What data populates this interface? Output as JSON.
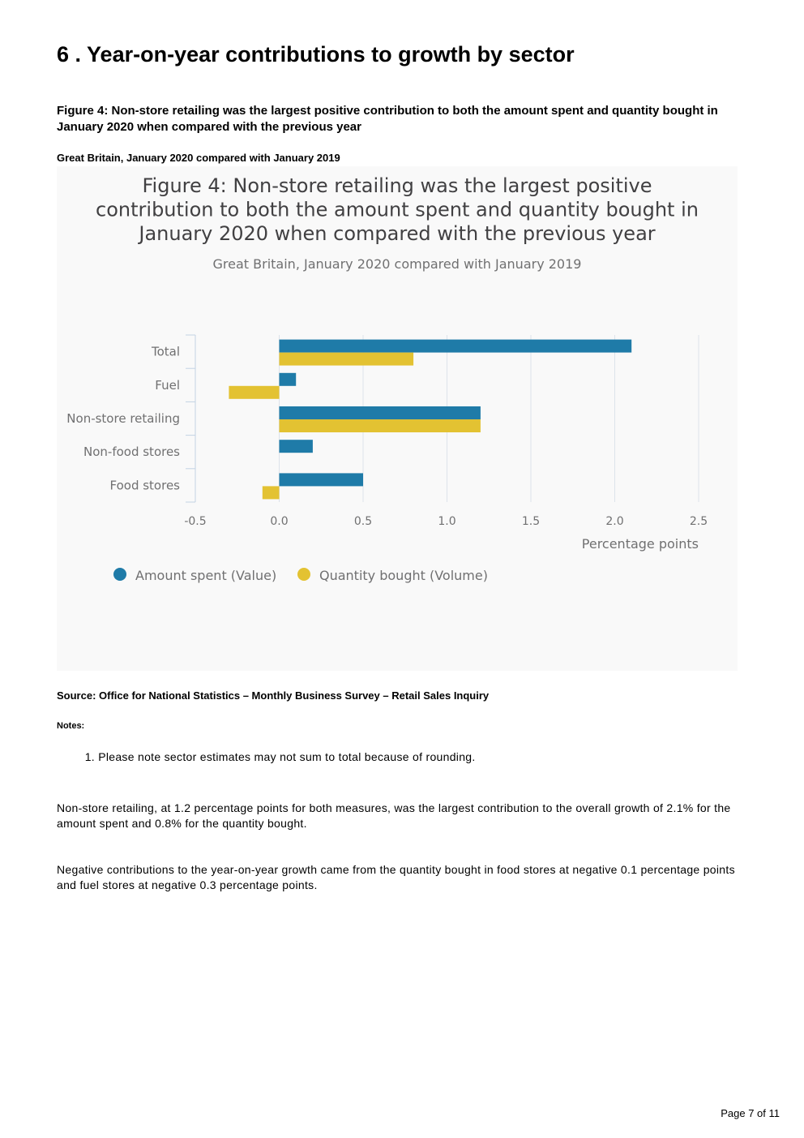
{
  "section_heading": "6 . Year-on-year contributions to growth by sector",
  "figure_caption": "Figure 4: Non-store retailing was the largest positive contribution to both the amount spent and quantity bought in January 2020 when compared with the previous year",
  "figure_subcaption": "Great Britain, January 2020 compared with January 2019",
  "chart_data": {
    "type": "bar",
    "orientation": "horizontal",
    "title": "Figure 4: Non-store retailing was the largest positive contribution to both the amount spent and quantity bought in January 2020 when compared with the previous year",
    "title_lines": [
      "Figure 4: Non-store retailing was the largest positive",
      "contribution to both the amount spent and quantity bought in",
      "January 2020 when compared with the previous year"
    ],
    "subtitle": "Great Britain, January 2020 compared with January 2019",
    "categories": [
      "Total",
      "Fuel",
      "Non-store retailing",
      "Non-food stores",
      "Food stores"
    ],
    "series": [
      {
        "name": "Amount spent (Value)",
        "color": "#1f7ba8",
        "values": [
          2.1,
          0.1,
          1.2,
          0.2,
          0.5
        ]
      },
      {
        "name": "Quantity bought (Volume)",
        "color": "#e3c232",
        "values": [
          0.8,
          -0.3,
          1.2,
          0.0,
          -0.1
        ]
      }
    ],
    "xlabel": "Percentage points",
    "ylabel": "",
    "xlim": [
      -0.5,
      2.5
    ],
    "xticks": [
      "-0.5",
      "0.0",
      "0.5",
      "1.0",
      "1.5",
      "2.0",
      "2.5"
    ],
    "grid": true,
    "legend": "bottom-left"
  },
  "source": "Source: Office for National Statistics – Monthly Business Survey – Retail Sales Inquiry",
  "notes_label": "Notes:",
  "notes": [
    {
      "number": "1.",
      "text": "Please note sector estimates may not sum to total because of rounding."
    }
  ],
  "paragraphs": [
    "Non-store retailing, at 1.2 percentage points for both measures, was the largest contribution to the overall growth of 2.1% for the amount spent and 0.8% for the quantity bought.",
    "Negative contributions to the year-on-year growth came from the quantity bought in food stores at negative 0.1 percentage points and fuel stores at negative 0.3 percentage points."
  ],
  "page_number": "Page 7 of 11"
}
